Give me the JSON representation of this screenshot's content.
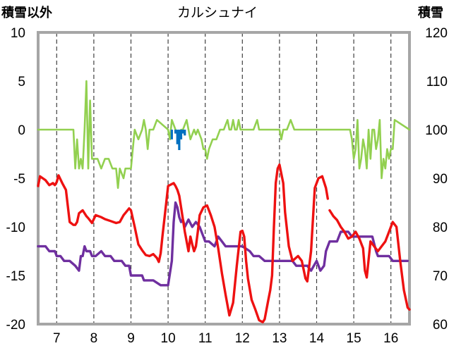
{
  "chart_data": {
    "type": "line",
    "title": "カルシュナイ",
    "left_axis_label": "積雪以外",
    "right_axis_label": "積雪",
    "ylim_left": [
      -20,
      10
    ],
    "ylim_right": [
      60,
      120
    ],
    "xlim": [
      6.5,
      16.5
    ],
    "left_ticks": [
      "10",
      "5",
      "0",
      "-5",
      "-10",
      "-15",
      "-20"
    ],
    "right_ticks": [
      "120",
      "110",
      "100",
      "90",
      "80",
      "70",
      "60"
    ],
    "x_ticks": [
      "7",
      "8",
      "9",
      "10",
      "11",
      "12",
      "13",
      "14",
      "15",
      "16"
    ],
    "grid": "vertical dashed",
    "series": [
      {
        "color": "#ee1111",
        "axis": "left",
        "x": [
          6.5,
          6.55,
          6.7,
          6.8,
          6.9,
          6.95,
          7.0,
          7.05,
          7.15,
          7.25,
          7.35,
          7.45,
          7.5,
          7.55,
          7.6,
          7.7,
          7.8,
          7.85,
          7.95,
          8.05,
          8.2,
          8.3,
          8.45,
          8.6,
          8.7,
          8.8,
          8.95,
          9.0,
          9.1,
          9.2,
          9.3,
          9.4,
          9.5,
          9.6,
          9.7,
          9.75,
          9.8,
          9.85,
          9.95,
          10.0,
          10.15,
          10.2,
          10.25,
          10.3,
          10.35,
          10.45,
          10.55,
          10.6,
          10.65,
          10.7,
          10.75,
          10.8,
          10.85,
          10.95,
          11.05,
          11.15,
          11.25,
          11.35,
          11.45,
          11.55,
          11.65,
          11.75,
          11.85,
          11.95,
          12.0,
          12.05,
          12.1,
          12.15,
          12.25,
          12.35,
          12.45,
          12.55,
          12.6,
          12.7,
          12.75,
          12.8,
          12.85,
          12.9,
          12.95,
          13.0,
          13.1,
          13.15,
          13.25,
          13.35,
          13.5,
          13.6,
          13.7,
          13.75,
          13.85,
          13.95,
          14.05,
          14.15,
          14.25,
          14.3
        ],
        "y": [
          -5.8,
          -4.8,
          -5.2,
          -5.7,
          -5.5,
          -5.7,
          -5.4,
          -4.7,
          -5.5,
          -6.2,
          -9.5,
          -9.8,
          -9.8,
          -9.5,
          -8.6,
          -8.3,
          -8.9,
          -9.1,
          -9.6,
          -8.8,
          -9.0,
          -9.2,
          -9.4,
          -9.6,
          -9.5,
          -8.8,
          -8.1,
          -8.3,
          -10.0,
          -11.8,
          -12.4,
          -12.9,
          -13.0,
          -12.8,
          -13.2,
          -13.6,
          -12.7,
          -10.9,
          -7.5,
          -5.8,
          -5.5,
          -5.8,
          -6.2,
          -6.8,
          -8.0,
          -10.5,
          -12.5,
          -11.0,
          -11.8,
          -12.5,
          -12.0,
          -10.5,
          -8.8,
          -8.0,
          -7.8,
          -8.8,
          -10.0,
          -12.2,
          -14.8,
          -17.0,
          -19.1,
          -17.8,
          -14.0,
          -10.5,
          -10.4,
          -11.0,
          -13.5,
          -15.3,
          -17.5,
          -18.5,
          -19.6,
          -19.8,
          -19.5,
          -17.5,
          -16.5,
          -15.0,
          -10.0,
          -5.5,
          -4.0,
          -3.6,
          -5.5,
          -8.5,
          -12.0,
          -13.5,
          -13.0,
          -13.5,
          -15.3,
          -15.6,
          -12.5,
          -6.0,
          -5.0,
          -4.8,
          -6.0,
          -7.1
        ]
      },
      {
        "color": "#ee1111",
        "axis": "left",
        "x": [
          14.35,
          14.45,
          14.55,
          14.65,
          14.75,
          14.85,
          14.95,
          15.05,
          15.15,
          15.25,
          15.3,
          15.35,
          15.45,
          15.55,
          15.65,
          15.75,
          15.85,
          15.95,
          16.05,
          16.15,
          16.25,
          16.35,
          16.45,
          16.5
        ],
        "y": [
          -8.3,
          -8.9,
          -9.3,
          -10.0,
          -10.5,
          -11.2,
          -11.0,
          -10.5,
          -11.2,
          -12.2,
          -14.5,
          -15.2,
          -11.5,
          -12.0,
          -12.5,
          -12.0,
          -11.5,
          -10.5,
          -9.5,
          -10.0,
          -13.5,
          -16.5,
          -18.3,
          -18.5
        ]
      },
      {
        "color": "#6f2f9f",
        "axis": "right",
        "x": [
          6.5,
          6.7,
          6.8,
          6.95,
          7.0,
          7.1,
          7.2,
          7.35,
          7.5,
          7.6,
          7.65,
          7.7,
          7.75,
          7.8,
          7.85,
          7.9,
          7.95,
          8.05,
          8.2,
          8.3,
          8.45,
          8.55,
          8.65,
          8.75,
          8.85,
          8.95,
          9.0,
          9.2,
          9.3,
          9.35,
          9.45,
          9.6,
          9.8,
          9.9,
          10.0,
          10.1,
          10.15,
          10.2,
          10.25,
          10.3,
          10.35,
          10.4,
          10.45,
          10.55,
          10.65,
          10.75,
          10.85,
          10.95,
          11.0,
          11.1,
          11.25,
          11.35,
          11.45,
          11.55,
          11.7,
          11.75,
          11.85,
          12.0,
          12.2,
          12.3,
          12.45,
          12.6,
          12.8,
          12.9,
          12.95,
          13.05,
          13.2,
          13.35,
          13.45,
          13.6,
          13.75,
          13.85,
          14.0,
          14.1,
          14.2,
          14.25,
          14.35,
          14.45,
          14.55,
          14.65,
          14.75,
          14.85,
          14.95,
          15.0,
          15.15,
          15.35,
          15.5,
          15.6,
          15.65,
          15.75,
          15.85,
          15.95,
          16.05,
          16.15,
          16.3,
          16.45
        ],
        "y": [
          76.0,
          76.0,
          75.0,
          75.0,
          74.0,
          74.0,
          73.0,
          73.0,
          72.0,
          71.0,
          74.0,
          74.0,
          76.0,
          75.0,
          75.0,
          75.0,
          74.0,
          74.0,
          75.0,
          74.0,
          74.0,
          73.0,
          73.0,
          73.0,
          72.0,
          72.0,
          70.0,
          70.0,
          70.0,
          69.0,
          69.0,
          69.0,
          68.0,
          68.0,
          68.0,
          73.0,
          81.0,
          85.0,
          84.0,
          82.0,
          81.0,
          81.5,
          80.0,
          81.5,
          80.0,
          81.0,
          80.0,
          78.0,
          77.0,
          77.0,
          76.0,
          78.0,
          77.0,
          76.0,
          76.0,
          76.0,
          76.0,
          76.0,
          75.0,
          74.0,
          74.0,
          73.0,
          73.0,
          73.0,
          73.0,
          73.0,
          73.0,
          73.0,
          72.0,
          72.0,
          72.0,
          71.0,
          73.0,
          71.0,
          72.0,
          75.0,
          77.0,
          77.0,
          77.0,
          79.0,
          79.0,
          79.0,
          78.0,
          78.0,
          78.0,
          78.0,
          78.0,
          75.0,
          74.0,
          74.0,
          74.0,
          74.0,
          73.0,
          73.0,
          73.0,
          73.0
        ]
      },
      {
        "color": "#92d050",
        "axis": "left",
        "x": [
          6.5,
          7.45,
          7.5,
          7.55,
          7.6,
          7.65,
          7.7,
          7.75,
          7.8,
          7.85,
          7.9,
          7.95,
          8.0,
          8.1,
          8.2,
          8.3,
          8.4,
          8.5,
          8.6,
          8.65,
          8.7,
          8.8,
          8.85,
          8.9,
          9.0,
          9.05,
          9.1,
          9.2,
          9.3,
          9.35,
          9.4,
          9.45,
          9.5,
          9.6,
          9.7,
          10.0,
          10.05,
          10.1,
          10.2,
          10.3,
          10.35,
          10.4,
          10.5,
          10.55,
          10.6,
          10.7,
          10.75,
          10.8,
          10.9,
          10.95,
          11.0,
          11.05,
          11.1,
          11.2,
          11.3,
          11.4,
          11.5,
          11.6,
          11.65,
          11.7,
          11.75,
          11.8,
          11.85,
          11.9,
          11.95,
          12.3,
          12.4,
          12.45,
          12.5,
          13.0,
          13.05,
          13.1,
          13.2,
          13.3,
          13.4,
          14.9,
          14.95,
          15.0,
          15.05,
          15.1,
          15.15,
          15.2,
          15.25,
          15.3,
          15.35,
          15.4,
          15.45,
          15.5,
          15.55,
          15.6,
          15.65,
          15.7,
          15.75,
          15.8,
          15.85,
          15.9,
          15.95,
          16.0,
          16.05,
          16.1,
          16.5
        ],
        "y": [
          0,
          0,
          -4.0,
          -1.0,
          -4.0,
          -3.0,
          -4.0,
          0,
          5.0,
          -4.0,
          3.0,
          -3.0,
          -3.0,
          -3.0,
          -4.0,
          -3.0,
          -3.0,
          -4.0,
          -4.0,
          -6.0,
          -4.0,
          -5.0,
          -4.0,
          -4.0,
          -4.0,
          -2.0,
          0,
          -1.0,
          0,
          1.0,
          0,
          -2.0,
          0,
          0,
          1.0,
          0,
          -1.0,
          1.0,
          0,
          -1.0,
          0,
          0,
          1.0,
          0,
          -1.0,
          0,
          -0.5,
          0,
          -1.0,
          -2.0,
          -2.0,
          -3.0,
          -2.0,
          -1.0,
          -1.0,
          0,
          0,
          1.0,
          0,
          0,
          1.0,
          0,
          0,
          1.0,
          0,
          0,
          1.0,
          0,
          0,
          0,
          -1.0,
          0,
          0,
          1.0,
          0,
          0,
          -1.0,
          -3.0,
          -2.0,
          1.0,
          -4.0,
          -3.0,
          -1.0,
          -2.0,
          -4.0,
          0,
          -3.0,
          0,
          0,
          -2.0,
          -1.0,
          1.0,
          -5.0,
          -3.0,
          -4.0,
          -2.0,
          -3.0,
          -2.0,
          -2.0,
          1.0,
          0
        ]
      },
      {
        "color": "#0070c0",
        "axis": "left",
        "type": "bar",
        "x": [
          10.1,
          10.2,
          10.25,
          10.3,
          10.35,
          10.4,
          10.45
        ],
        "y": [
          -1.0,
          -0.4,
          -1.5,
          -2.1,
          -1.0,
          -0.4,
          -0.6
        ]
      }
    ]
  }
}
